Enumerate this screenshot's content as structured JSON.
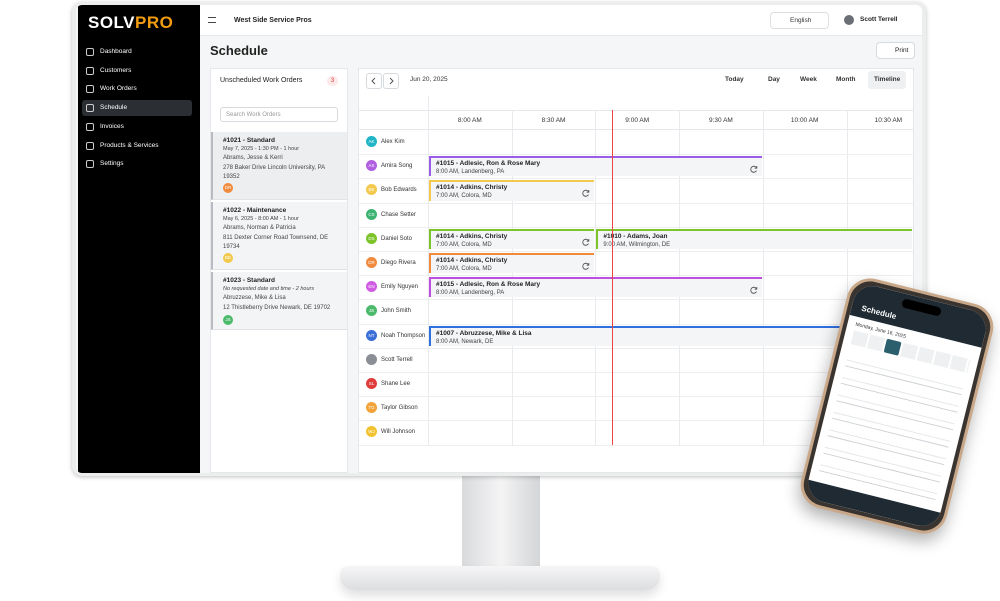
{
  "brand": [
    "SOLV",
    "PRO"
  ],
  "nav": {
    "items": [
      "Dashboard",
      "Customers",
      "Work Orders",
      "Schedule",
      "Invoices",
      "Products & Services",
      "Settings"
    ],
    "active": "Schedule"
  },
  "topbar": {
    "company": "West Side Service Pros",
    "language": "English",
    "user": "Scott Terrell"
  },
  "page": {
    "title": "Schedule",
    "print": "Print"
  },
  "unscheduled": {
    "title": "Unscheduled Work Orders",
    "count": "3",
    "search_placeholder": "Search Work Orders",
    "items": [
      {
        "title": "#1021 - Standard",
        "when": "May 7, 2025 - 1:30 PM - 1 hour",
        "customer": "Abrams, Jesse & Kerri",
        "address": "278 Baker Drive Lincoln University, PA 19352",
        "initials": "DR",
        "color": "#f08a3c"
      },
      {
        "title": "#1022 - Maintenance",
        "when": "May 6, 2025 - 8:00 AM - 1 hour",
        "customer": "Abrams, Norman & Patricia",
        "address": "811 Dexter Corner Road Townsend, DE 19734",
        "initials": "BE",
        "color": "#f2c94c"
      },
      {
        "title": "#1023 - Standard",
        "when": "No requested date and time - 2 hours",
        "customer": "Abruzzese, Mike & Lisa",
        "address": "12 Thistleberry Drive Newark, DE 19702",
        "initials": "JS",
        "color": "#4cba6b"
      }
    ]
  },
  "calendar": {
    "date": "Jun 20, 2025",
    "today": "Today",
    "views": [
      "Day",
      "Week",
      "Month",
      "Timeline"
    ],
    "active_view": "Timeline",
    "times": [
      "8:00 AM",
      "8:30 AM",
      "9:00 AM",
      "9:30 AM",
      "10:00 AM",
      "10:30 AM"
    ],
    "staff": [
      {
        "name": "Alex Kim",
        "initials": "AK",
        "color": "#1fb5c6"
      },
      {
        "name": "Amira Song",
        "initials": "AS",
        "color": "#b05fe0"
      },
      {
        "name": "Bob Edwards",
        "initials": "BE",
        "color": "#f2c94c"
      },
      {
        "name": "Chase Setter",
        "initials": "CS",
        "color": "#3cb371"
      },
      {
        "name": "Daniel Soto",
        "initials": "DS",
        "color": "#7cc42a"
      },
      {
        "name": "Diego Rivera",
        "initials": "DR",
        "color": "#f08a3c"
      },
      {
        "name": "Emily Nguyen",
        "initials": "EN",
        "color": "#d05ce3"
      },
      {
        "name": "John Smith",
        "initials": "JS",
        "color": "#4cba6b"
      },
      {
        "name": "Noah Thompson",
        "initials": "NT",
        "color": "#3b6fd8"
      },
      {
        "name": "Scott Terrell",
        "initials": "",
        "color": "#8a8f96"
      },
      {
        "name": "Shane Lee",
        "initials": "SL",
        "color": "#e03c3c"
      },
      {
        "name": "Taylor Gibson",
        "initials": "TG",
        "color": "#f2a33a"
      },
      {
        "name": "Will Johnson",
        "initials": "WJ",
        "color": "#f2c230"
      }
    ],
    "events": [
      {
        "title": "#1015 - Adlesic, Ron & Rose Mary",
        "subtitle": "8:00 AM, Landenberg, PA",
        "color": "#9b5de5",
        "recurring": true
      },
      {
        "title": "#1014 - Adkins, Christy",
        "subtitle": "7:00 AM, Colora, MD",
        "color": "#f2c94c",
        "recurring": true
      },
      {
        "title": "#1014 - Adkins, Christy",
        "subtitle": "7:00 AM, Colora, MD",
        "color": "#7cc42a",
        "recurring": true
      },
      {
        "title": "#1010 - Adams, Joan",
        "subtitle": "9:00 AM, Wilmington, DE",
        "color": "#7cc42a",
        "recurring": false
      },
      {
        "title": "#1014 - Adkins, Christy",
        "subtitle": "7:00 AM, Colora, MD",
        "color": "#f08a3c",
        "recurring": true
      },
      {
        "title": "#1015 - Adlesic, Ron & Rose Mary",
        "subtitle": "8:00 AM, Landenberg, PA",
        "color": "#c04fe0",
        "recurring": true
      },
      {
        "title": "#1007 - Abruzzese, Mike & Lisa",
        "subtitle": "8:00 AM, Newark, DE",
        "color": "#2f6fde",
        "recurring": false
      }
    ]
  },
  "phone": {
    "title": "Schedule",
    "date": "Monday, June 16, 2025"
  }
}
